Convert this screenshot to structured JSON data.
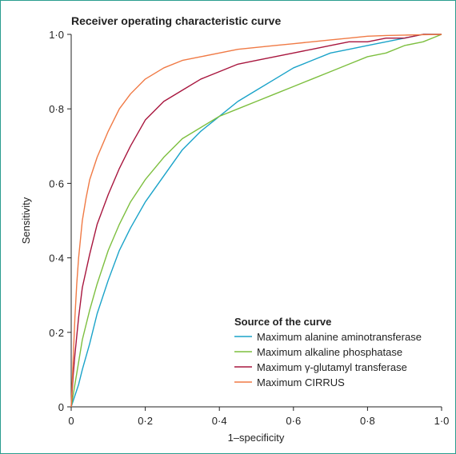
{
  "chart_data": {
    "type": "line",
    "title": "Receiver operating characteristic curve",
    "xlabel": "1–specificity",
    "ylabel": "Sensitivity",
    "xlim": [
      0,
      1
    ],
    "ylim": [
      0,
      1
    ],
    "xticks": [
      0,
      0.2,
      0.4,
      0.6,
      0.8,
      1.0
    ],
    "xtick_labels": [
      "0",
      "0·2",
      "0·4",
      "0·6",
      "0·8",
      "1·0"
    ],
    "yticks": [
      0,
      0.2,
      0.4,
      0.6,
      0.8,
      1.0
    ],
    "ytick_labels": [
      "0",
      "0·2",
      "0·4",
      "0·6",
      "0·8",
      "1·0"
    ],
    "grid": false,
    "legend": {
      "title": "Source of the curve",
      "position": "bottom-right"
    },
    "series": [
      {
        "name": "Maximum alanine aminotransferase",
        "color": "#1aa3c9",
        "x": [
          0,
          0.01,
          0.02,
          0.03,
          0.05,
          0.07,
          0.1,
          0.13,
          0.16,
          0.2,
          0.25,
          0.3,
          0.35,
          0.4,
          0.45,
          0.5,
          0.55,
          0.6,
          0.65,
          0.7,
          0.75,
          0.8,
          0.85,
          0.9,
          0.95,
          1.0
        ],
        "y": [
          0,
          0.03,
          0.06,
          0.1,
          0.17,
          0.25,
          0.34,
          0.42,
          0.48,
          0.55,
          0.62,
          0.69,
          0.74,
          0.78,
          0.82,
          0.85,
          0.88,
          0.91,
          0.93,
          0.95,
          0.96,
          0.97,
          0.98,
          0.99,
          1.0,
          1.0
        ]
      },
      {
        "name": "Maximum alkaline phosphatase",
        "color": "#7dbf3f",
        "x": [
          0,
          0.01,
          0.02,
          0.03,
          0.05,
          0.07,
          0.1,
          0.13,
          0.16,
          0.2,
          0.25,
          0.3,
          0.35,
          0.4,
          0.45,
          0.5,
          0.55,
          0.6,
          0.65,
          0.7,
          0.75,
          0.8,
          0.85,
          0.9,
          0.95,
          1.0
        ],
        "y": [
          0,
          0.06,
          0.12,
          0.18,
          0.26,
          0.33,
          0.42,
          0.49,
          0.55,
          0.61,
          0.67,
          0.72,
          0.75,
          0.78,
          0.8,
          0.82,
          0.84,
          0.86,
          0.88,
          0.9,
          0.92,
          0.94,
          0.95,
          0.97,
          0.98,
          1.0
        ]
      },
      {
        "name": "Maximum γ-glutamyl transferase",
        "color": "#a8163e",
        "x": [
          0,
          0.005,
          0.01,
          0.02,
          0.03,
          0.05,
          0.07,
          0.1,
          0.13,
          0.16,
          0.2,
          0.25,
          0.3,
          0.35,
          0.4,
          0.45,
          0.5,
          0.55,
          0.6,
          0.65,
          0.7,
          0.75,
          0.8,
          0.85,
          0.9,
          0.95,
          1.0
        ],
        "y": [
          0,
          0.08,
          0.14,
          0.24,
          0.32,
          0.41,
          0.49,
          0.57,
          0.64,
          0.7,
          0.77,
          0.82,
          0.85,
          0.88,
          0.9,
          0.92,
          0.93,
          0.94,
          0.95,
          0.96,
          0.97,
          0.98,
          0.98,
          0.99,
          0.99,
          1.0,
          1.0
        ]
      },
      {
        "name": "Maximum CIRRUS",
        "color": "#f07a45",
        "x": [
          0,
          0.005,
          0.01,
          0.015,
          0.02,
          0.03,
          0.04,
          0.05,
          0.07,
          0.1,
          0.13,
          0.16,
          0.2,
          0.25,
          0.3,
          0.35,
          0.4,
          0.45,
          0.5,
          0.55,
          0.6,
          0.65,
          0.7,
          0.75,
          0.8,
          0.85,
          0.9,
          0.95,
          1.0
        ],
        "y": [
          0,
          0.12,
          0.24,
          0.33,
          0.4,
          0.5,
          0.56,
          0.61,
          0.67,
          0.74,
          0.8,
          0.84,
          0.88,
          0.91,
          0.93,
          0.94,
          0.95,
          0.96,
          0.965,
          0.97,
          0.975,
          0.98,
          0.985,
          0.99,
          0.995,
          0.997,
          0.998,
          0.999,
          1.0
        ]
      }
    ]
  }
}
